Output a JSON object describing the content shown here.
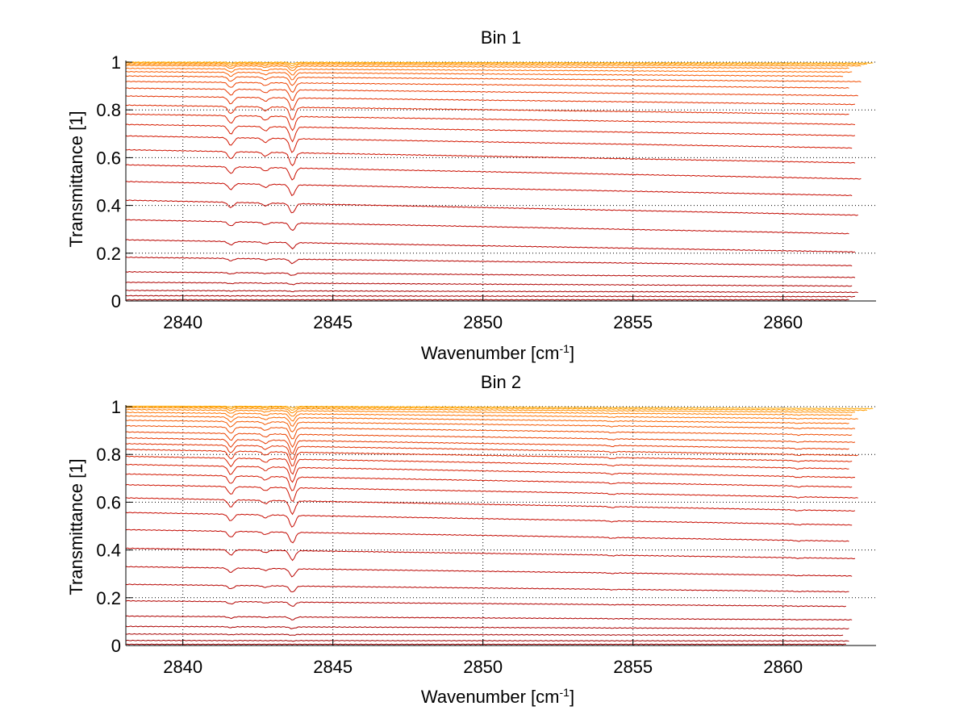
{
  "chart_data": [
    {
      "type": "line",
      "title": "Bin 1",
      "xlabel": "Wavenumber [cm",
      "xlabel_sup": "-1",
      "xlabel_tail": "]",
      "ylabel": "Transmittance [1]",
      "xlim": [
        2838.1,
        2863.1
      ],
      "ylim": [
        0,
        1
      ],
      "grid": "dotted",
      "xticks": [
        2840,
        2845,
        2850,
        2855,
        2860
      ],
      "xtick_labels": [
        "2840",
        "2845",
        "2850",
        "2855",
        "2860"
      ],
      "yticks": [
        0,
        0.2,
        0.4,
        0.6,
        0.8,
        1
      ],
      "ytick_labels": [
        "0",
        "0.2",
        "0.4",
        "0.6",
        "0.8",
        "1"
      ],
      "x_range": [
        2838.1,
        2863.0
      ],
      "x_end_values": [
        2863.0,
        2862.8,
        2862.6,
        2862.2,
        2862.3,
        2862.0,
        2862.6,
        2862.2,
        2862.5,
        2862.4,
        2862.2,
        2862.4,
        2862.4,
        2862.3,
        2862.4,
        2862.6,
        2862.3,
        2862.5,
        2862.2,
        2862.4,
        2862.3,
        2862.4,
        2862.3,
        2862.5,
        2862.4,
        2862.2
      ],
      "absorption_lines": [
        {
          "x": 2841.6,
          "rel_depth": 0.55
        },
        {
          "x": 2842.75,
          "rel_depth": 0.3
        },
        {
          "x": 2843.65,
          "rel_depth": 1.0
        }
      ],
      "series_levels": [
        0.998,
        0.994,
        0.988,
        0.98,
        0.966,
        0.95,
        0.93,
        0.905,
        0.875,
        0.84,
        0.8,
        0.76,
        0.715,
        0.665,
        0.605,
        0.54,
        0.47,
        0.39,
        0.31,
        0.23,
        0.165,
        0.11,
        0.07,
        0.04,
        0.02,
        0.005
      ],
      "series_slope": [
        0.002,
        0.003,
        0.004,
        0.006,
        0.008,
        0.01,
        0.012,
        0.014,
        0.016,
        0.018,
        0.02,
        0.022,
        0.024,
        0.026,
        0.028,
        0.03,
        0.03,
        0.032,
        0.03,
        0.026,
        0.018,
        0.012,
        0.008,
        0.004,
        0.002,
        0.0
      ],
      "series_depth": [
        0.005,
        0.01,
        0.015,
        0.02,
        0.025,
        0.03,
        0.035,
        0.04,
        0.045,
        0.05,
        0.055,
        0.058,
        0.06,
        0.058,
        0.055,
        0.05,
        0.045,
        0.04,
        0.032,
        0.025,
        0.018,
        0.01,
        0.006,
        0.003,
        0.001,
        0.0
      ],
      "series_colors": [
        "#ffaa00",
        "#ff9900",
        "#ff8800",
        "#ff7a00",
        "#ff6a00",
        "#f85a00",
        "#f24d00",
        "#ee4200",
        "#e83800",
        "#e33000",
        "#de2800",
        "#da2200",
        "#d61c00",
        "#d21600",
        "#ce1200",
        "#ca0e00",
        "#c60a00",
        "#c20800",
        "#be0600",
        "#ba0400",
        "#b60300",
        "#b20200",
        "#ae0100",
        "#aa0000",
        "#a60000",
        "#a20000"
      ]
    },
    {
      "type": "line",
      "title": "Bin 2",
      "xlabel": "Wavenumber [cm",
      "xlabel_sup": "-1",
      "xlabel_tail": "]",
      "ylabel": "Transmittance [1]",
      "xlim": [
        2838.1,
        2863.1
      ],
      "ylim": [
        0,
        1
      ],
      "grid": "dotted",
      "xticks": [
        2840,
        2845,
        2850,
        2855,
        2860
      ],
      "xtick_labels": [
        "2840",
        "2845",
        "2850",
        "2855",
        "2860"
      ],
      "yticks": [
        0,
        0.2,
        0.4,
        0.6,
        0.8,
        1
      ],
      "ytick_labels": [
        "0",
        "0.2",
        "0.4",
        "0.6",
        "0.8",
        "1"
      ],
      "x_range": [
        2838.1,
        2863.0
      ],
      "x_end_values": [
        2863.0,
        2862.8,
        2862.4,
        2862.3,
        2862.5,
        2862.2,
        2862.4,
        2862.3,
        2862.4,
        2862.2,
        2862.5,
        2862.3,
        2862.2,
        2862.4,
        2862.3,
        2862.5,
        2862.4,
        2862.3,
        2862.2,
        2862.4,
        2862.3,
        2862.2,
        2862.1,
        2862.3,
        2862.2,
        2862.0,
        2862.2,
        2862.1
      ],
      "absorption_lines": [
        {
          "x": 2841.6,
          "rel_depth": 0.55
        },
        {
          "x": 2842.75,
          "rel_depth": 0.25
        },
        {
          "x": 2843.65,
          "rel_depth": 1.0
        },
        {
          "x": 2854.3,
          "rel_depth": 0.08
        },
        {
          "x": 2860.5,
          "rel_depth": 0.07
        }
      ],
      "series_levels": [
        0.998,
        0.993,
        0.986,
        0.976,
        0.962,
        0.945,
        0.925,
        0.9,
        0.872,
        0.845,
        0.82,
        0.795,
        0.765,
        0.73,
        0.69,
        0.645,
        0.59,
        0.53,
        0.46,
        0.385,
        0.31,
        0.24,
        0.175,
        0.115,
        0.075,
        0.045,
        0.02,
        0.005
      ],
      "series_slope": [
        0.006,
        0.008,
        0.01,
        0.012,
        0.014,
        0.016,
        0.018,
        0.02,
        0.022,
        0.024,
        0.025,
        0.026,
        0.027,
        0.028,
        0.028,
        0.028,
        0.028,
        0.027,
        0.025,
        0.022,
        0.02,
        0.016,
        0.012,
        0.008,
        0.005,
        0.003,
        0.001,
        0.0
      ],
      "series_depth": [
        0.006,
        0.012,
        0.018,
        0.024,
        0.03,
        0.036,
        0.042,
        0.048,
        0.052,
        0.056,
        0.058,
        0.06,
        0.062,
        0.062,
        0.06,
        0.058,
        0.055,
        0.05,
        0.045,
        0.04,
        0.033,
        0.026,
        0.018,
        0.012,
        0.007,
        0.004,
        0.002,
        0.0
      ],
      "series_colors": [
        "#ffaa00",
        "#ff9c00",
        "#ff8e00",
        "#ff8000",
        "#ff7200",
        "#fa6400",
        "#f45800",
        "#ef4c00",
        "#ea4200",
        "#e63800",
        "#e23000",
        "#de2800",
        "#da2200",
        "#d61c00",
        "#d21600",
        "#ce1200",
        "#ca0e00",
        "#c60a00",
        "#c20800",
        "#be0600",
        "#ba0400",
        "#b60300",
        "#b20200",
        "#ae0100",
        "#aa0000",
        "#a60000",
        "#a20000",
        "#9e0000"
      ]
    }
  ]
}
